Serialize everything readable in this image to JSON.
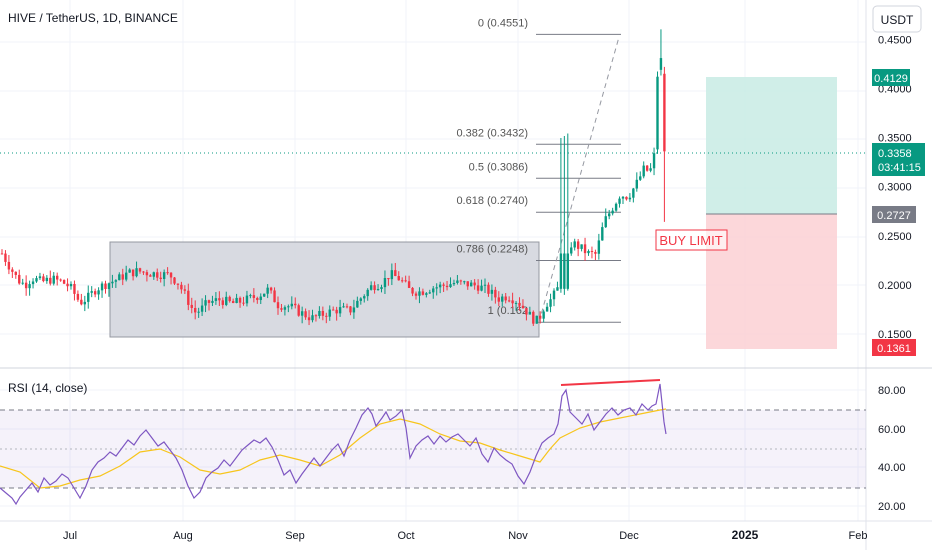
{
  "symbol_title": "HIVE / TetherUS, 1D, BINANCE",
  "currency_button": "USDT",
  "price_axis": [
    "0.4500",
    "0.4000",
    "0.3500",
    "0.3000",
    "0.2500",
    "0.2000",
    "0.1500"
  ],
  "rsi_axis": [
    "80.00",
    "60.00",
    "40.00",
    "20.00"
  ],
  "time_axis": [
    "Jul",
    "Aug",
    "Sep",
    "Oct",
    "Nov",
    "Dec",
    "2025",
    "Feb"
  ],
  "fib_levels": [
    {
      "label": "0 (0.4551)",
      "price": 0.4551
    },
    {
      "label": "0.382 (0.3432)",
      "price": 0.3432
    },
    {
      "label": "0.5 (0.3086)",
      "price": 0.3086
    },
    {
      "label": "0.618 (0.2740)",
      "price": 0.274
    },
    {
      "label": "0.786 (0.2248)",
      "price": 0.2248
    },
    {
      "label": "1 (0.162",
      "price": 0.162
    }
  ],
  "order_label": "BUY LIMIT",
  "badges": {
    "target": {
      "text": "0.4129",
      "color": "#089981"
    },
    "current": {
      "text": "0.3358",
      "countdown": "03:41:15",
      "color": "#089981"
    },
    "entry": {
      "text": "0.2727",
      "color": "#787b86"
    },
    "stop": {
      "text": "0.1361",
      "color": "#f23645"
    }
  },
  "rsi_title": "RSI (14, close)",
  "chart_data": [
    {
      "type": "candlestick",
      "ylim": [
        0.13,
        0.46
      ],
      "title": "HIVE / TetherUS, 1D, BINANCE",
      "x_labels": [
        "Jul",
        "Aug",
        "Sep",
        "Oct",
        "Nov",
        "Dec",
        "2025",
        "Feb"
      ],
      "current_price": 0.3358,
      "consolidation_range": [
        0.148,
        0.242
      ],
      "trade_setup": {
        "entry": 0.2727,
        "target": 0.4129,
        "stop": 0.1361
      },
      "colors": {
        "up": "#089981",
        "down": "#f23645"
      }
    },
    {
      "type": "line",
      "title": "RSI (14, close)",
      "ylim": [
        15,
        88
      ],
      "bands": [
        70,
        50,
        30
      ],
      "series": [
        {
          "color": "#7e57c2"
        },
        {
          "color": "#f7c51c"
        }
      ]
    }
  ]
}
